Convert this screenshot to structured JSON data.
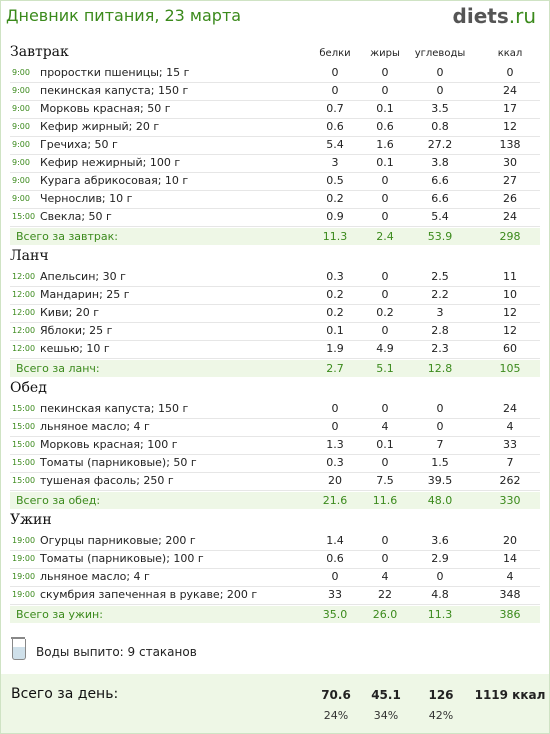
{
  "title": "Дневник питания, 23 марта",
  "logo": {
    "main": "diets",
    "tld": ".ru"
  },
  "columns": {
    "b": "белки",
    "f": "жиры",
    "c": "углеводы",
    "k": "ккал"
  },
  "meals": [
    {
      "name": "Завтрак",
      "total_label": "Всего за завтрак:",
      "total": [
        "11.3",
        "2.4",
        "53.9",
        "298"
      ],
      "items": [
        {
          "time": "9:00",
          "name": "проростки пшеницы; 15 г",
          "v": [
            "0",
            "0",
            "0",
            "0"
          ]
        },
        {
          "time": "9:00",
          "name": "пекинская капуста; 150 г",
          "v": [
            "0",
            "0",
            "0",
            "24"
          ]
        },
        {
          "time": "9:00",
          "name": "Морковь красная; 50 г",
          "v": [
            "0.7",
            "0.1",
            "3.5",
            "17"
          ]
        },
        {
          "time": "9:00",
          "name": "Кефир жирный; 20 г",
          "v": [
            "0.6",
            "0.6",
            "0.8",
            "12"
          ]
        },
        {
          "time": "9:00",
          "name": "Гречиха; 50 г",
          "v": [
            "5.4",
            "1.6",
            "27.2",
            "138"
          ]
        },
        {
          "time": "9:00",
          "name": "Кефир нежирный; 100 г",
          "v": [
            "3",
            "0.1",
            "3.8",
            "30"
          ]
        },
        {
          "time": "9:00",
          "name": "Курага абрикосовая; 10 г",
          "v": [
            "0.5",
            "0",
            "6.6",
            "27"
          ]
        },
        {
          "time": "9:00",
          "name": "Чернослив; 10 г",
          "v": [
            "0.2",
            "0",
            "6.6",
            "26"
          ]
        },
        {
          "time": "15:00",
          "name": "Свекла; 50 г",
          "v": [
            "0.9",
            "0",
            "5.4",
            "24"
          ]
        }
      ]
    },
    {
      "name": "Ланч",
      "total_label": "Всего за ланч:",
      "total": [
        "2.7",
        "5.1",
        "12.8",
        "105"
      ],
      "items": [
        {
          "time": "12:00",
          "name": "Апельсин; 30 г",
          "v": [
            "0.3",
            "0",
            "2.5",
            "11"
          ]
        },
        {
          "time": "12:00",
          "name": "Мандарин; 25 г",
          "v": [
            "0.2",
            "0",
            "2.2",
            "10"
          ]
        },
        {
          "time": "12:00",
          "name": "Киви; 20 г",
          "v": [
            "0.2",
            "0.2",
            "3",
            "12"
          ]
        },
        {
          "time": "12:00",
          "name": "Яблоки; 25 г",
          "v": [
            "0.1",
            "0",
            "2.8",
            "12"
          ]
        },
        {
          "time": "12:00",
          "name": "кешью; 10 г",
          "v": [
            "1.9",
            "4.9",
            "2.3",
            "60"
          ]
        }
      ]
    },
    {
      "name": "Обед",
      "total_label": "Всего за обед:",
      "total": [
        "21.6",
        "11.6",
        "48.0",
        "330"
      ],
      "items": [
        {
          "time": "15:00",
          "name": "пекинская капуста; 150 г",
          "v": [
            "0",
            "0",
            "0",
            "24"
          ]
        },
        {
          "time": "15:00",
          "name": "льняное масло; 4 г",
          "v": [
            "0",
            "4",
            "0",
            "4"
          ]
        },
        {
          "time": "15:00",
          "name": "Морковь красная; 100 г",
          "v": [
            "1.3",
            "0.1",
            "7",
            "33"
          ]
        },
        {
          "time": "15:00",
          "name": "Томаты (парниковые); 50 г",
          "v": [
            "0.3",
            "0",
            "1.5",
            "7"
          ]
        },
        {
          "time": "15:00",
          "name": "тушеная фасоль; 250 г",
          "v": [
            "20",
            "7.5",
            "39.5",
            "262"
          ]
        }
      ]
    },
    {
      "name": "Ужин",
      "total_label": "Всего за ужин:",
      "total": [
        "35.0",
        "26.0",
        "11.3",
        "386"
      ],
      "items": [
        {
          "time": "19:00",
          "name": "Огурцы парниковые; 200 г",
          "v": [
            "1.4",
            "0",
            "3.6",
            "20"
          ]
        },
        {
          "time": "19:00",
          "name": "Томаты (парниковые); 100 г",
          "v": [
            "0.6",
            "0",
            "2.9",
            "14"
          ]
        },
        {
          "time": "19:00",
          "name": "льняное масло; 4 г",
          "v": [
            "0",
            "4",
            "0",
            "4"
          ]
        },
        {
          "time": "19:00",
          "name": "скумбрия запеченная в рукаве; 200 г",
          "v": [
            "33",
            "22",
            "4.8",
            "348"
          ]
        }
      ]
    }
  ],
  "water": "Воды выпито: 9 стаканов",
  "day": {
    "label": "Всего за день:",
    "b": "70.6",
    "f": "45.1",
    "c": "126",
    "k": "1119 ккал",
    "bp": "24%",
    "fp": "34%",
    "cp": "42%"
  }
}
